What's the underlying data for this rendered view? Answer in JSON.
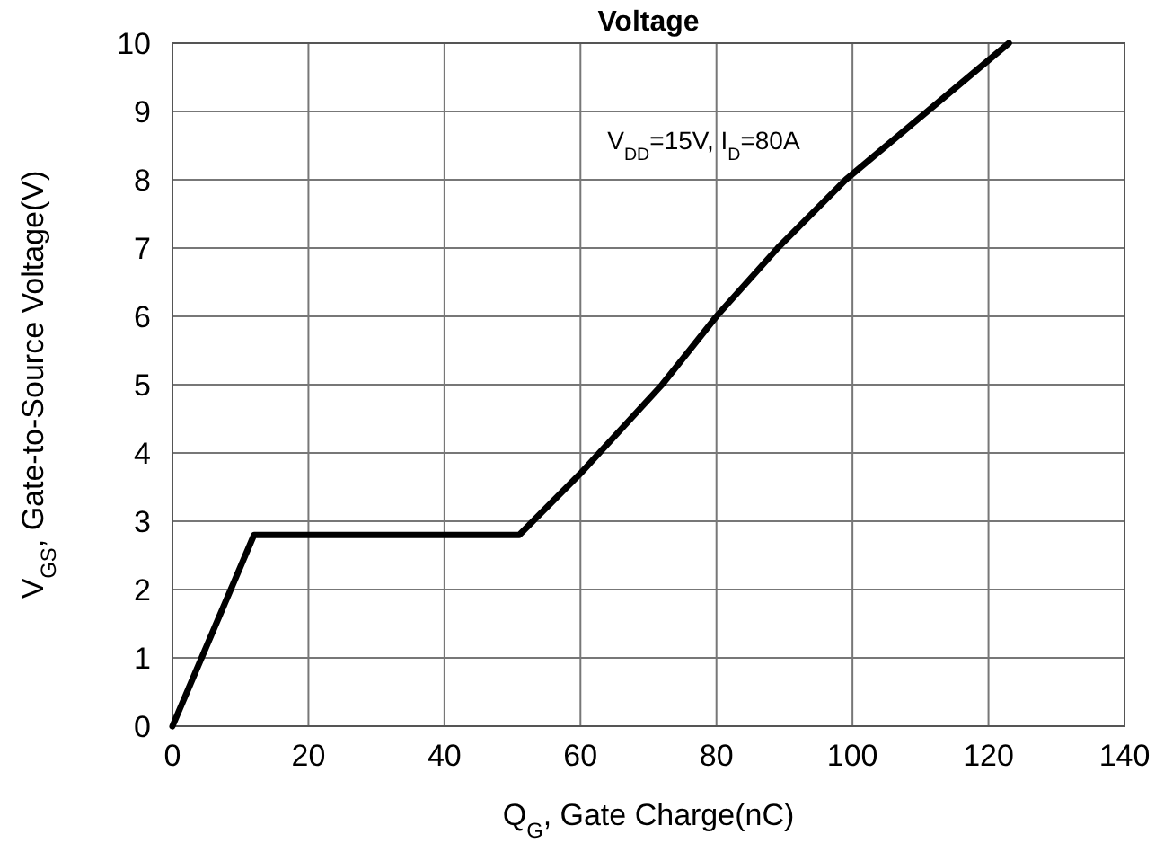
{
  "chart_data": {
    "type": "line",
    "title": "Voltage",
    "xlabel": "Q$_{G}$, Gate Charge(nC)",
    "ylabel": "V$_{GS}$, Gate-to-Source Voltage(V)",
    "annotations": [
      "V$_{DD}$=15V, I$_{D}$=80A"
    ],
    "x": [
      0,
      12,
      51,
      60,
      72,
      80,
      89,
      99,
      111,
      123
    ],
    "series": [
      {
        "color": "#000000",
        "values": [
          0,
          2.8,
          2.8,
          3.7,
          5,
          6,
          7,
          8,
          9,
          10
        ]
      }
    ],
    "xlim": [
      0,
      140
    ],
    "xticks": [
      0,
      20,
      40,
      60,
      80,
      100,
      120,
      140
    ],
    "ylim": [
      0,
      10
    ],
    "yticks": [
      0,
      1,
      2,
      3,
      4,
      5,
      6,
      7,
      8,
      9,
      10
    ],
    "grid": true,
    "marker": "none",
    "line_style": "solid"
  }
}
